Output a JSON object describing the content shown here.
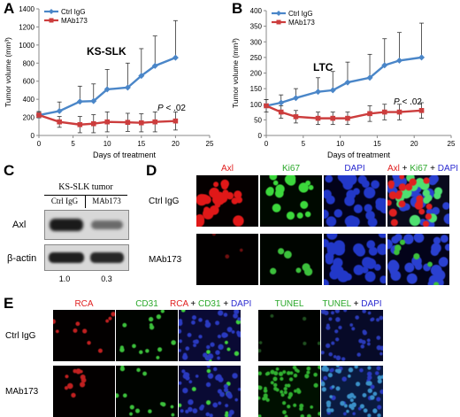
{
  "panels": {
    "A": "A",
    "B": "B",
    "C": "C",
    "D": "D",
    "E": "E"
  },
  "chart_data": [
    {
      "type": "line",
      "panel": "A",
      "title": "KS-SLK",
      "annotation": "P < .02",
      "xlabel": "Days of treatment",
      "ylabel": "Tumor volume (mm³)",
      "xlim": [
        0,
        25
      ],
      "ylim": [
        0,
        1400
      ],
      "xticks": [
        "0",
        "5",
        "10",
        "15",
        "20",
        "25"
      ],
      "yticks": [
        "0",
        "200",
        "400",
        "600",
        "800",
        "1000",
        "1200",
        "1400"
      ],
      "legend_position": "top-left",
      "series": [
        {
          "name": "Ctrl IgG",
          "color": "#4a86c8",
          "x": [
            0,
            3,
            6,
            8,
            10,
            13,
            15,
            17,
            20
          ],
          "y": [
            225,
            270,
            375,
            380,
            510,
            530,
            660,
            770,
            860
          ],
          "err": [
            40,
            100,
            170,
            190,
            220,
            270,
            300,
            330,
            410
          ]
        },
        {
          "name": "MAb173",
          "color": "#cc3d3d",
          "x": [
            0,
            3,
            6,
            8,
            10,
            13,
            15,
            17,
            20
          ],
          "y": [
            225,
            150,
            120,
            130,
            150,
            145,
            140,
            150,
            160
          ],
          "err": [
            30,
            60,
            90,
            100,
            110,
            100,
            100,
            110,
            100
          ]
        }
      ]
    },
    {
      "type": "line",
      "panel": "B",
      "title": "LTC",
      "annotation": "P < .02",
      "xlabel": "Days of treatment",
      "ylabel": "Tumor volume (mm³)",
      "xlim": [
        0,
        25
      ],
      "ylim": [
        0,
        400
      ],
      "xticks": [
        "0",
        "5",
        "10",
        "15",
        "20",
        "25"
      ],
      "yticks": [
        "0",
        "50",
        "100",
        "150",
        "200",
        "250",
        "300",
        "350",
        "400"
      ],
      "legend_position": "top-left",
      "series": [
        {
          "name": "Ctrl IgG",
          "color": "#4a86c8",
          "x": [
            0,
            2,
            4,
            7,
            9,
            11,
            14,
            16,
            18,
            21
          ],
          "y": [
            95,
            105,
            120,
            140,
            145,
            170,
            185,
            225,
            240,
            250
          ],
          "err": [
            20,
            25,
            30,
            45,
            60,
            65,
            75,
            85,
            90,
            110
          ]
        },
        {
          "name": "MAb173",
          "color": "#cc3d3d",
          "x": [
            0,
            2,
            4,
            7,
            9,
            11,
            14,
            16,
            18,
            21
          ],
          "y": [
            95,
            75,
            60,
            55,
            55,
            55,
            70,
            75,
            75,
            80
          ],
          "err": [
            20,
            20,
            20,
            20,
            20,
            20,
            25,
            25,
            25,
            25
          ]
        }
      ]
    }
  ],
  "western": {
    "title": "KS-SLK tumor",
    "lanes": [
      "Ctrl IgG",
      "MAb173"
    ],
    "rows": [
      "Axl",
      "β-actin"
    ],
    "quant": [
      "1.0",
      "0.3"
    ]
  },
  "panel_d": {
    "columns": [
      [
        {
          "t": "Axl",
          "c": "#e02020"
        }
      ],
      [
        {
          "t": "Ki67",
          "c": "#2aa82a"
        }
      ],
      [
        {
          "t": "DAPI",
          "c": "#2a2ad0"
        }
      ],
      [
        {
          "t": "Axl",
          "c": "#e02020"
        },
        {
          "t": " + ",
          "c": "#000000"
        },
        {
          "t": "Ki67",
          "c": "#2aa82a"
        },
        {
          "t": " + ",
          "c": "#000000"
        },
        {
          "t": "DAPI",
          "c": "#2a2ad0"
        }
      ]
    ],
    "rows": [
      "Ctrl IgG",
      "MAb173"
    ]
  },
  "panel_e": {
    "left_columns": [
      [
        {
          "t": "RCA",
          "c": "#e02020"
        }
      ],
      [
        {
          "t": "CD31",
          "c": "#2aa82a"
        }
      ],
      [
        {
          "t": "RCA",
          "c": "#e02020"
        },
        {
          "t": " + ",
          "c": "#000000"
        },
        {
          "t": "CD31",
          "c": "#2aa82a"
        },
        {
          "t": " + ",
          "c": "#000000"
        },
        {
          "t": "DAPI",
          "c": "#2a2ad0"
        }
      ]
    ],
    "right_columns": [
      [
        {
          "t": "TUNEL",
          "c": "#2aa82a"
        }
      ],
      [
        {
          "t": "TUNEL",
          "c": "#2aa82a"
        },
        {
          "t": " + ",
          "c": "#000000"
        },
        {
          "t": "DAPI",
          "c": "#2a2ad0"
        }
      ]
    ],
    "rows": [
      "Ctrl IgG",
      "MAb173"
    ]
  }
}
